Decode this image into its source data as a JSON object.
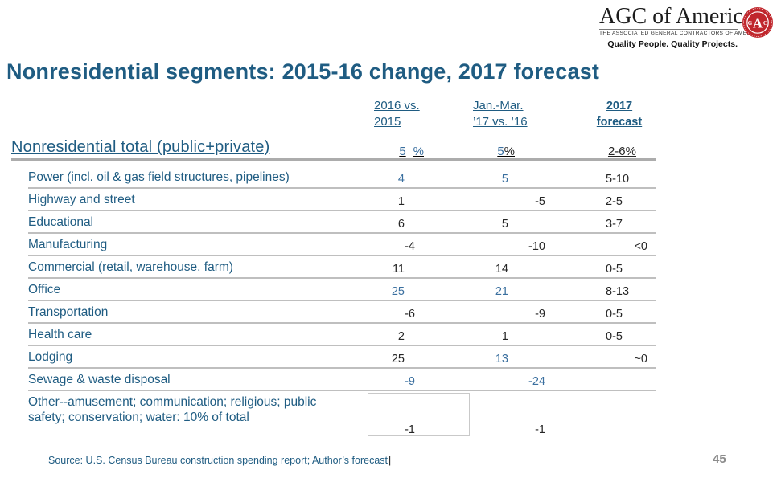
{
  "logo": {
    "wordmark": "AGC of America",
    "subtitle": "THE ASSOCIATED GENERAL CONTRACTORS OF AMERICA",
    "tagline": "Quality People. Quality Projects.",
    "seal_letters": {
      "center": "A",
      "left": "G",
      "right": "C"
    }
  },
  "title": "Nonresidential segments: 2015-16 change, 2017 forecast",
  "columns": [
    {
      "line1": "2016 vs.",
      "line2": "2015"
    },
    {
      "line1": "Jan.-Mar.",
      "line2": "’17 vs. ’16"
    },
    {
      "line1": "2017",
      "line2": "forecast"
    }
  ],
  "total_row": {
    "label": "Nonresidential total (public+private)",
    "v1": {
      "num": "5",
      "pct": "%"
    },
    "v2": {
      "num": "5",
      "pct": "%"
    },
    "v3": "2-6%"
  },
  "rows": [
    {
      "label": "Power (incl. oil & gas field structures, pipelines)",
      "c1": {
        "t": "4",
        "blue": true
      },
      "c2": {
        "t": "5",
        "blue": true
      },
      "c3": {
        "t": "5-10"
      }
    },
    {
      "label": "Highway and street",
      "c1": {
        "t": "1"
      },
      "c2": {
        "t": "-5",
        "neg": true
      },
      "c3": {
        "t": "2-5"
      }
    },
    {
      "label": "Educational",
      "c1": {
        "t": "6"
      },
      "c2": {
        "t": "5"
      },
      "c3": {
        "t": "3-7"
      }
    },
    {
      "label": "Manufacturing",
      "c1": {
        "t": "-4",
        "neg": true
      },
      "c2": {
        "t": "-10",
        "neg": true
      },
      "c3": {
        "t": "<0",
        "right": true
      }
    },
    {
      "label": "Commercial (retail, warehouse, farm)",
      "c1": {
        "t": "11"
      },
      "c2": {
        "t": "14"
      },
      "c3": {
        "t": "0-5"
      }
    },
    {
      "label": "Office",
      "c1": {
        "t": "25",
        "blue": true
      },
      "c2": {
        "t": "21",
        "blue": true
      },
      "c3": {
        "t": "8-13"
      }
    },
    {
      "label": "Transportation",
      "c1": {
        "t": "-6",
        "neg": true
      },
      "c2": {
        "t": "-9",
        "neg": true
      },
      "c3": {
        "t": "0-5"
      }
    },
    {
      "label": "Health care",
      "c1": {
        "t": "2"
      },
      "c2": {
        "t": "1"
      },
      "c3": {
        "t": "0-5"
      }
    },
    {
      "label": "Lodging",
      "c1": {
        "t": "25"
      },
      "c2": {
        "t": "13",
        "blue": true
      },
      "c3": {
        "t": "~0",
        "right": true
      }
    },
    {
      "label": "Sewage & waste disposal",
      "c1": {
        "t": "-9",
        "blue": true,
        "neg": true
      },
      "c2": {
        "t": "-24",
        "blue": true,
        "neg": true
      },
      "c3": {
        "t": ""
      }
    },
    {
      "label": "Other--amusement; communication; religious; public safety; conservation; water: 10% of total",
      "c1": {
        "t": "-1",
        "neg": true
      },
      "c2": {
        "t": "-1",
        "neg": true
      },
      "c3": {
        "t": ""
      },
      "other": true
    }
  ],
  "source": "Source: U.S. Census Bureau construction spending report; Author’s forecast",
  "caret": "|",
  "page_number": "45",
  "colors": {
    "heading_blue": "#1F5C82",
    "number_blue": "#3A6F9F",
    "number_dark": "#262626",
    "rule_gray": "#BFBFBF",
    "total_rule_gray": "#ACACAC",
    "seal_red": "#C0272D",
    "page_number_gray": "#8C8C8C"
  }
}
